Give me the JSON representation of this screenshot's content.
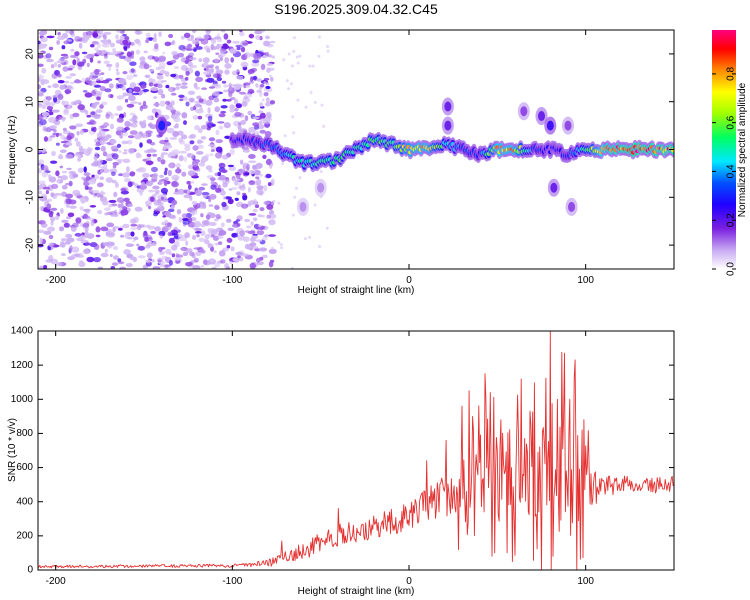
{
  "chart_data": [
    {
      "type": "heatmap",
      "title": "S196.2025.309.04.32.C45",
      "xlabel": "Height of straight line (km)",
      "ylabel": "Frequency (Hz)",
      "xlim": [
        -210,
        150
      ],
      "ylim": [
        -25,
        25
      ],
      "x_ticks": [
        -200,
        -100,
        0,
        100
      ],
      "y_ticks": [
        -20,
        -10,
        0,
        10,
        20
      ],
      "colorbar": {
        "label": "Normalized spectral amplitude",
        "range": [
          0,
          0.98
        ],
        "ticks": [
          0.0,
          0.2,
          0.4,
          0.6,
          0.8
        ],
        "tick_labels": [
          "0.0",
          "0.2",
          "0.4",
          "0.6",
          "0.8"
        ],
        "colors": [
          "#ffffff",
          "#c7a8f2",
          "#8a3be6",
          "#4a00d8",
          "#0000ff",
          "#00e0ff",
          "#00ff40",
          "#ffff00",
          "#ff8c00",
          "#ff0000",
          "#ff0080"
        ]
      },
      "ridge": {
        "x": [
          -100,
          -90,
          -80,
          -70,
          -60,
          -50,
          -40,
          -30,
          -20,
          -10,
          0,
          10,
          20,
          30,
          40,
          50,
          60,
          70,
          80,
          90,
          100,
          110,
          120,
          130,
          140,
          150
        ],
        "freq": [
          2,
          2,
          1,
          -1,
          -3,
          -3,
          -2,
          0,
          2,
          1,
          0,
          0,
          1,
          0,
          -1,
          0,
          0,
          0,
          0,
          -1,
          0,
          0,
          0,
          0,
          0,
          0
        ],
        "amplitude": [
          0.25,
          0.3,
          0.35,
          0.45,
          0.5,
          0.55,
          0.55,
          0.5,
          0.6,
          0.55,
          0.75,
          0.8,
          0.5,
          0.35,
          0.3,
          0.8,
          0.8,
          0.35,
          0.25,
          0.3,
          0.55,
          0.85,
          0.9,
          0.92,
          0.9,
          0.88
        ]
      },
      "noise_region_x": [
        -210,
        -85
      ],
      "blobs": [
        {
          "x": -140,
          "y": 5,
          "a": 0.3
        },
        {
          "x": 22,
          "y": 9,
          "a": 0.2
        },
        {
          "x": 22,
          "y": 5,
          "a": 0.2
        },
        {
          "x": 65,
          "y": 8,
          "a": 0.15
        },
        {
          "x": 75,
          "y": 7,
          "a": 0.2
        },
        {
          "x": 80,
          "y": 5,
          "a": 0.25
        },
        {
          "x": 82,
          "y": -8,
          "a": 0.2
        },
        {
          "x": 90,
          "y": 5,
          "a": 0.15
        },
        {
          "x": 92,
          "y": -12,
          "a": 0.15
        },
        {
          "x": -60,
          "y": -12,
          "a": 0.1
        },
        {
          "x": -50,
          "y": -8,
          "a": 0.1
        }
      ]
    },
    {
      "type": "line",
      "xlabel": "Height of straight line (km)",
      "ylabel": "SNR (10 * v/v)",
      "xlim": [
        -210,
        150
      ],
      "ylim": [
        0,
        1400
      ],
      "x_ticks": [
        -200,
        -100,
        0,
        100
      ],
      "y_ticks": [
        0,
        200,
        400,
        600,
        800,
        1000,
        1200,
        1400
      ],
      "line_color": "#e53030",
      "baseline": {
        "x": [
          -210,
          -100,
          -90,
          -80,
          -70,
          -60,
          -50,
          -40,
          -30,
          -20,
          -10,
          0,
          10,
          20,
          30,
          40,
          50,
          60,
          70,
          80,
          90,
          100,
          110,
          120,
          130,
          140,
          150
        ],
        "y": [
          20,
          25,
          30,
          40,
          70,
          110,
          160,
          200,
          230,
          250,
          280,
          320,
          380,
          430,
          480,
          520,
          560,
          560,
          530,
          500,
          480,
          460,
          490,
          500,
          500,
          500,
          500
        ],
        "noise": [
          8,
          10,
          12,
          20,
          40,
          50,
          60,
          70,
          70,
          70,
          80,
          80,
          100,
          130,
          200,
          260,
          280,
          280,
          320,
          380,
          350,
          200,
          60,
          50,
          50,
          50,
          50
        ]
      },
      "spikes": [
        {
          "x": -72,
          "y": 170
        },
        {
          "x": -40,
          "y": 360
        },
        {
          "x": 10,
          "y": 640
        },
        {
          "x": 21,
          "y": 760
        },
        {
          "x": 30,
          "y": 960
        },
        {
          "x": 34,
          "y": 1050
        },
        {
          "x": 36,
          "y": 900
        },
        {
          "x": 43,
          "y": 1150
        },
        {
          "x": 46,
          "y": 1040
        },
        {
          "x": 52,
          "y": 880
        },
        {
          "x": 80,
          "y": 1400
        },
        {
          "x": 84,
          "y": 1000
        },
        {
          "x": 88,
          "y": 1270
        },
        {
          "x": 91,
          "y": 1000
        },
        {
          "x": 94,
          "y": 1230
        },
        {
          "x": 98,
          "y": 820
        }
      ]
    }
  ]
}
